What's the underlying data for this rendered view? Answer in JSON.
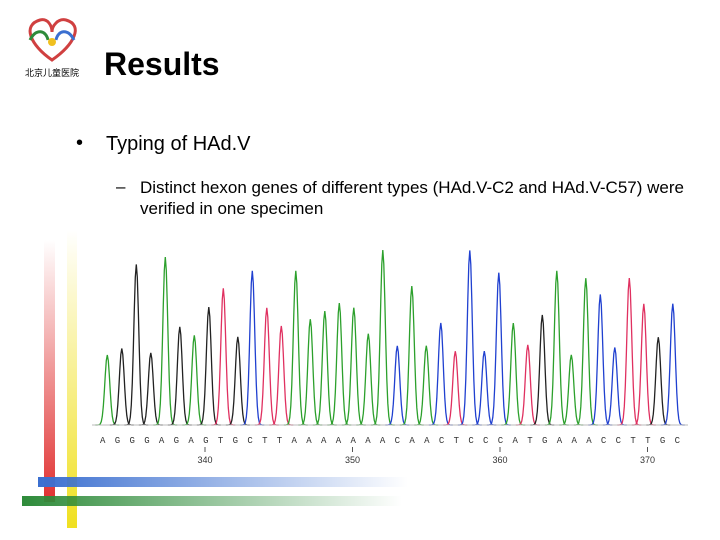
{
  "header": {
    "title": "Results",
    "logo_text": "北京儿童医院"
  },
  "bullets": [
    {
      "text": "Typing of HAd.V",
      "sub": [
        "Distinct hexon genes of different types (HAd.V-C2 and HAd.V-C57) were verified in one specimen"
      ]
    }
  ],
  "chromatogram": {
    "bases": "AGGGAGAGTGCTTAAAAAAACAACTCCCATGAAACCTTGC",
    "positions": [
      340,
      350,
      360,
      370
    ]
  }
}
